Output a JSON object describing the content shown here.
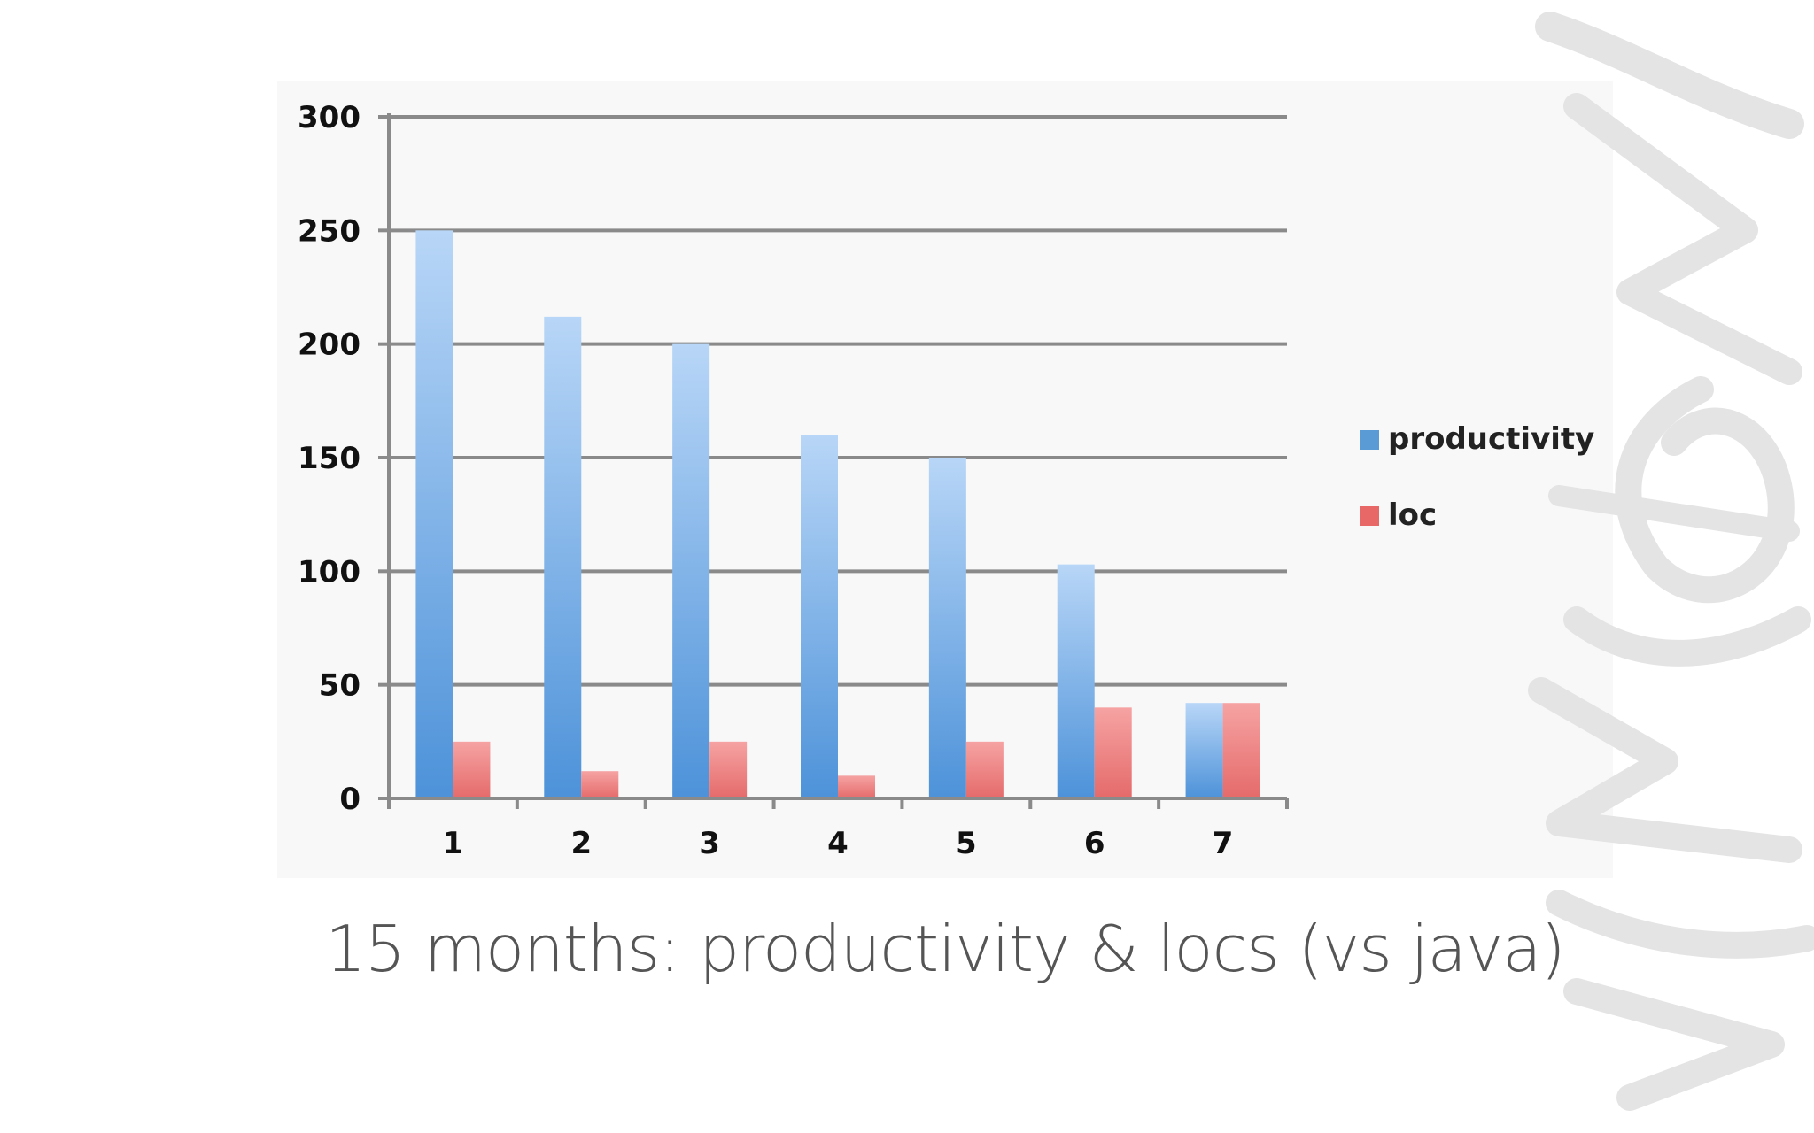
{
  "slide": {
    "caption": "15 months: productivity & locs (vs java)"
  },
  "chart_data": {
    "type": "bar",
    "categories": [
      "1",
      "2",
      "3",
      "4",
      "5",
      "6",
      "7"
    ],
    "series": [
      {
        "name": "productivity",
        "values": [
          250,
          212,
          200,
          160,
          150,
          103,
          42
        ],
        "color": "#5b9bd5"
      },
      {
        "name": "loc",
        "values": [
          25,
          12,
          25,
          10,
          25,
          40,
          42
        ],
        "color": "#e86868"
      }
    ],
    "ylim": [
      0,
      300
    ],
    "yticks": [
      "0",
      "50",
      "100",
      "150",
      "200",
      "250",
      "300"
    ],
    "ytick_values": [
      0,
      50,
      100,
      150,
      200,
      250,
      300
    ],
    "grid": true,
    "legend_position": "right",
    "title": "",
    "xlabel": "",
    "ylabel": ""
  }
}
